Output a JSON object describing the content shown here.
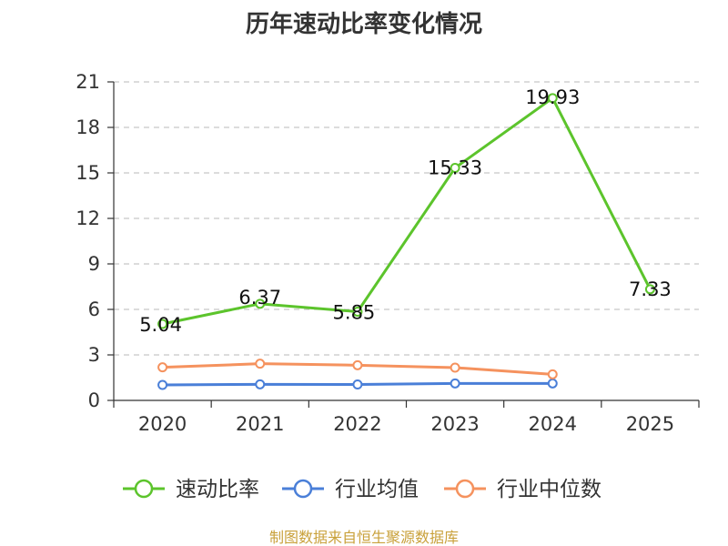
{
  "chart_data": {
    "type": "line",
    "title": "历年速动比率变化情况",
    "xlabel": "",
    "ylabel": "",
    "categories": [
      "2020",
      "2021",
      "2022",
      "2023",
      "2024",
      "2025"
    ],
    "ylim": [
      0,
      21
    ],
    "yticks": [
      0,
      3,
      6,
      9,
      12,
      15,
      18,
      21
    ],
    "grid": true,
    "legend_position": "bottom",
    "series": [
      {
        "name": "速动比率",
        "color": "#5cc42c",
        "values": [
          5.04,
          6.37,
          5.85,
          15.33,
          19.93,
          7.33
        ],
        "labels": [
          "5.04",
          "6.37",
          "5.85",
          "15.33",
          "19.93",
          "7.33"
        ]
      },
      {
        "name": "行业均值",
        "color": "#4a7fd8",
        "values": [
          1.02,
          1.06,
          1.05,
          1.12,
          1.12,
          null
        ]
      },
      {
        "name": "行业中位数",
        "color": "#f5925e",
        "values": [
          2.18,
          2.42,
          2.32,
          2.16,
          1.72,
          null
        ]
      }
    ],
    "source": "制图数据来自恒生聚源数据库"
  }
}
